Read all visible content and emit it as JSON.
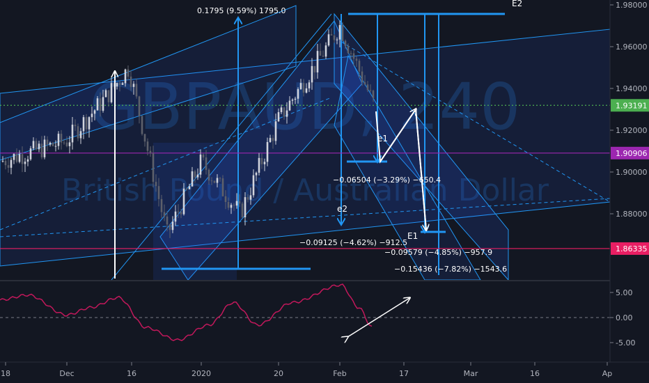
{
  "watermark": {
    "title": "GBPAUD, 240",
    "subtitle": "British Pound / Australian Dollar"
  },
  "colors": {
    "background": "#131722",
    "bull": "#d1d4dc",
    "bear": "#5d606b",
    "channel_fill": "#2962ff",
    "channel_line": "#2196f3",
    "magenta": "#9c27b0",
    "red_line": "#e91e63",
    "current_price": "#5b9a78",
    "oscillator": "#c2185b"
  },
  "price_tags": [
    {
      "label": "1.93191",
      "value": 1.93191,
      "color": "#4caf50",
      "style": "dotted"
    },
    {
      "label": "1.90906",
      "value": 1.90906,
      "color": "#9c27b0",
      "style": "solid"
    },
    {
      "label": "1.86335",
      "value": 1.86335,
      "color": "#e91e63",
      "style": "solid"
    }
  ],
  "annotations": {
    "top_label": "0.1795 (9.59%) 1795.0",
    "measure_1": "−0.06504 (−3.29%) −650.4",
    "measure_2": "−0.09125 (−4.62%) −912.5",
    "measure_3": "−0.09579 (−4.85%) −957.9",
    "measure_4": "−0.15436 (−7.82%) −1543.6",
    "wave_e1": "e1",
    "wave_e2": "e2",
    "wave_E1": "E1",
    "wave_E2": "E2"
  },
  "chart_data": [
    {
      "type": "candlestick",
      "title": "GBPAUD, 240",
      "subtitle": "British Pound / Australian Dollar",
      "ylim": [
        1.86,
        1.98
      ],
      "y_ticks": [
        "1.98000",
        "1.96000",
        "1.94000",
        "1.92000",
        "1.90000",
        "1.88000"
      ],
      "x_ticks": [
        "18",
        "Dec",
        "16",
        "2020",
        "20",
        "Feb",
        "17",
        "Mar",
        "16",
        "Ap"
      ],
      "series": [
        {
          "name": "close",
          "x": [
            "Nov 18",
            "Dec 1",
            "Dec 10",
            "Dec 13",
            "Dec 20",
            "Jan 1",
            "Jan 10",
            "Jan 20",
            "Jan 30",
            "Feb 2",
            "Feb 10"
          ],
          "values": [
            1.905,
            1.915,
            1.935,
            1.95,
            1.87,
            1.905,
            1.88,
            1.925,
            1.955,
            1.97,
            1.93
          ]
        }
      ]
    },
    {
      "type": "line",
      "ylim": [
        -6.5,
        6.5
      ],
      "y_ticks": [
        "5.00",
        "0.00",
        "-5.00"
      ],
      "series": [
        {
          "x": [
            "Nov 18",
            "Nov 25",
            "Dec 1",
            "Dec 8",
            "Dec 15",
            "Dec 22",
            "Dec 29",
            "Jan 5",
            "Jan 12",
            "Jan 19",
            "Jan 26",
            "Feb 1",
            "Feb 8",
            "Feb 10"
          ],
          "values": [
            3.5,
            4.5,
            0.5,
            2.0,
            4.0,
            -2.0,
            -4.5,
            -1.5,
            3.0,
            -1.5,
            3.0,
            6.5,
            2.0,
            -2.0
          ]
        }
      ]
    }
  ]
}
